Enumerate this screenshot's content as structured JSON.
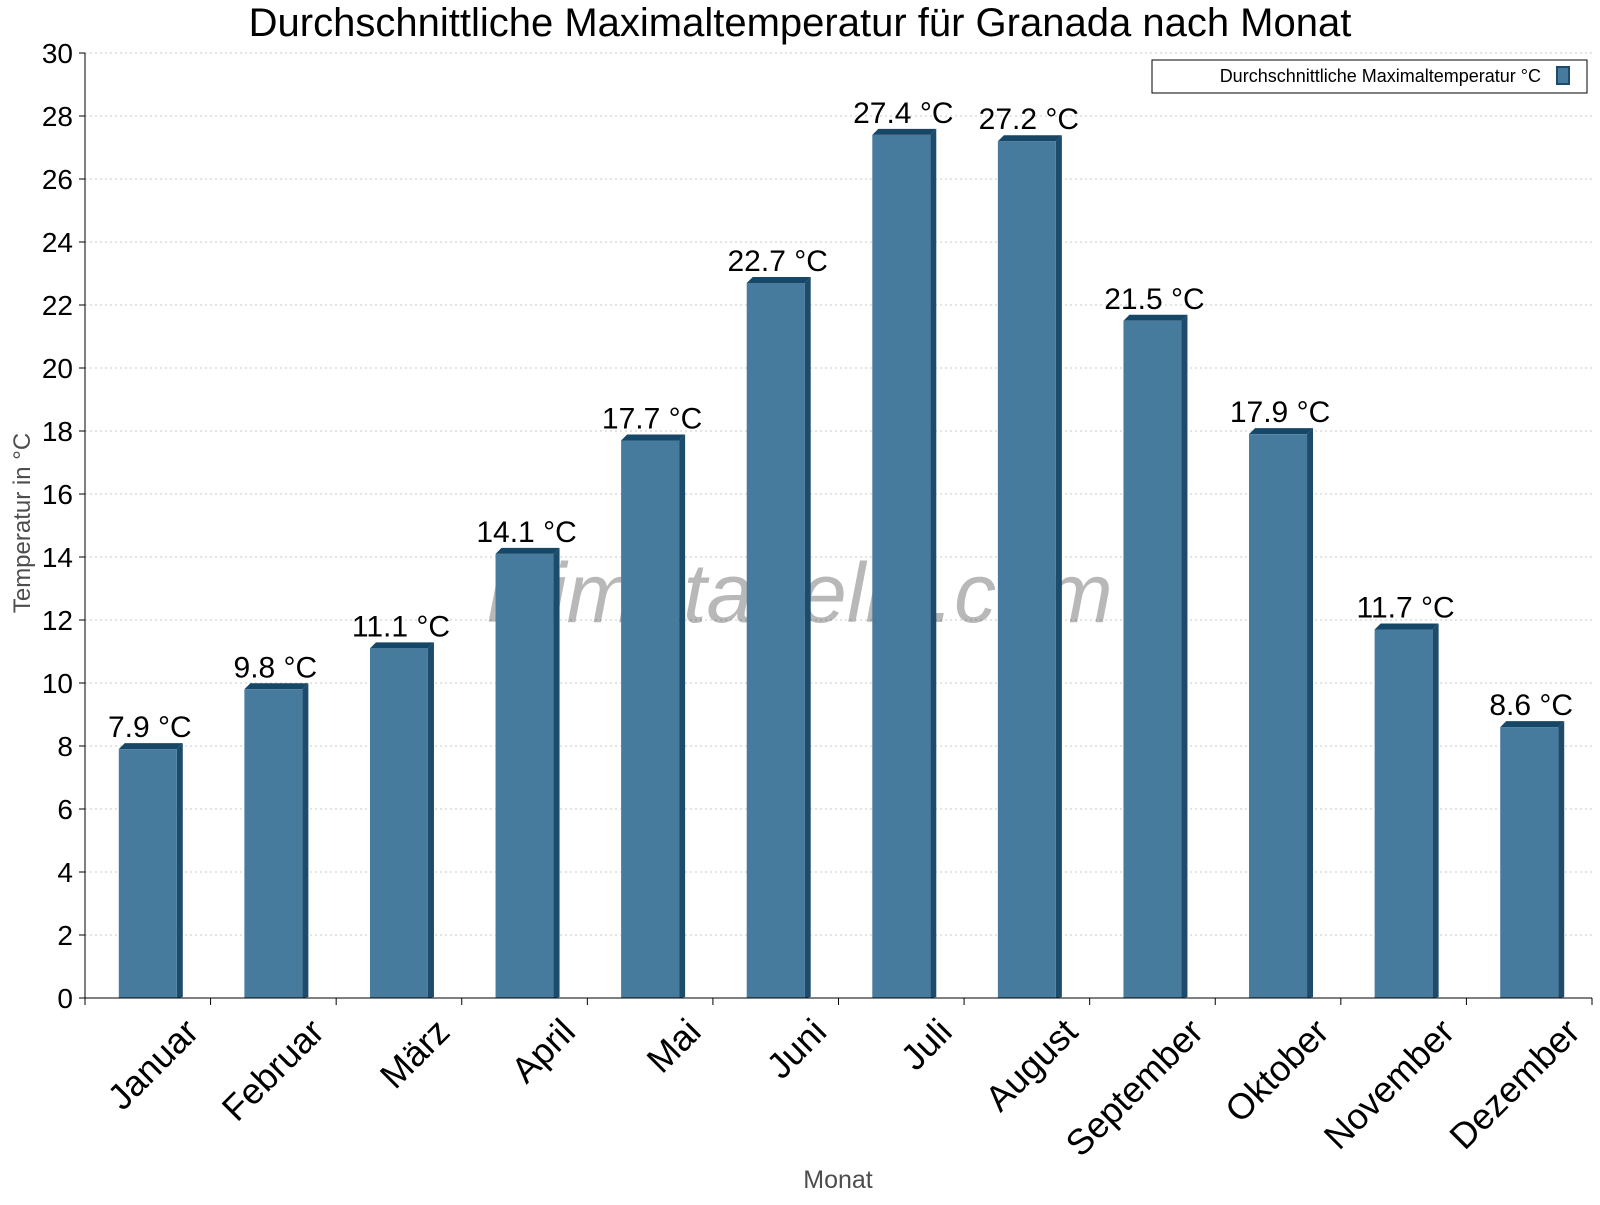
{
  "chart_data": {
    "type": "bar",
    "title": "Durchschnittliche Maximaltemperatur für Granada nach Monat",
    "xlabel": "Monat",
    "ylabel": "Temperatur in °C",
    "categories": [
      "Januar",
      "Februar",
      "März",
      "April",
      "Mai",
      "Juni",
      "Juli",
      "August",
      "September",
      "Oktober",
      "November",
      "Dezember"
    ],
    "series": [
      {
        "name": "Durchschnittliche Maximaltemperatur °C",
        "values": [
          7.9,
          9.8,
          11.1,
          14.1,
          17.7,
          22.7,
          27.4,
          27.2,
          21.5,
          17.9,
          11.7,
          8.6
        ],
        "data_labels": [
          "7.9 °C",
          "9.8 °C",
          "11.1 °C",
          "14.1 °C",
          "17.7 °C",
          "22.7 °C",
          "27.4 °C",
          "27.2 °C",
          "21.5 °C",
          "17.9 °C",
          "11.7 °C",
          "8.6 °C"
        ]
      }
    ],
    "ylim": [
      0,
      30
    ],
    "yticks": [
      0,
      2,
      4,
      6,
      8,
      10,
      12,
      14,
      16,
      18,
      20,
      22,
      24,
      26,
      28,
      30
    ],
    "grid": true,
    "legend_position": "top-right",
    "colors": {
      "bar_face": "#467b9e",
      "bar_side": "#1d4b6b",
      "bar_top": "#174766",
      "grid": "#c8c8c8",
      "axis_title": "#4d4d4d"
    }
  },
  "watermark": "klimatabelle.com"
}
